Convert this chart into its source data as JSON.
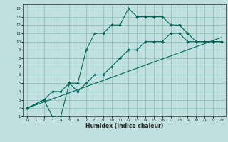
{
  "xlabel": "Humidex (Indice chaleur)",
  "background_color": "#c0e0e0",
  "grid_color": "#90c0c0",
  "line_color": "#006858",
  "xlim": [
    -0.5,
    23.5
  ],
  "ylim": [
    1,
    14.5
  ],
  "xticks": [
    0,
    1,
    2,
    3,
    4,
    5,
    6,
    7,
    8,
    9,
    10,
    11,
    12,
    13,
    14,
    15,
    16,
    17,
    18,
    19,
    20,
    21,
    22,
    23
  ],
  "yticks": [
    1,
    2,
    3,
    4,
    5,
    6,
    7,
    8,
    9,
    10,
    11,
    12,
    13,
    14
  ],
  "line1_x": [
    0,
    2,
    3,
    4,
    5,
    6,
    7,
    8,
    9,
    10,
    11,
    12,
    13,
    14,
    15,
    16,
    17,
    18,
    19,
    20,
    21,
    22,
    23
  ],
  "line1_y": [
    2,
    3,
    4,
    4,
    5,
    5,
    9,
    11,
    11,
    12,
    12,
    14,
    13,
    13,
    13,
    13,
    12,
    12,
    11,
    10,
    10,
    10,
    10
  ],
  "line2_x": [
    0,
    2,
    3,
    4,
    5,
    6,
    7,
    8,
    9,
    10,
    11,
    12,
    13,
    14,
    15,
    16,
    17,
    18,
    19,
    20,
    21,
    22,
    23
  ],
  "line2_y": [
    2,
    3,
    1,
    1,
    5,
    4,
    5,
    6,
    6,
    7,
    8,
    9,
    9,
    10,
    10,
    10,
    11,
    11,
    10,
    10,
    10,
    10,
    10
  ],
  "line3_x": [
    0,
    23
  ],
  "line3_y": [
    2,
    10.5
  ],
  "tick_fontsize": 4.0,
  "xlabel_fontsize": 5.5,
  "marker_size": 2.0,
  "linewidth": 0.8
}
